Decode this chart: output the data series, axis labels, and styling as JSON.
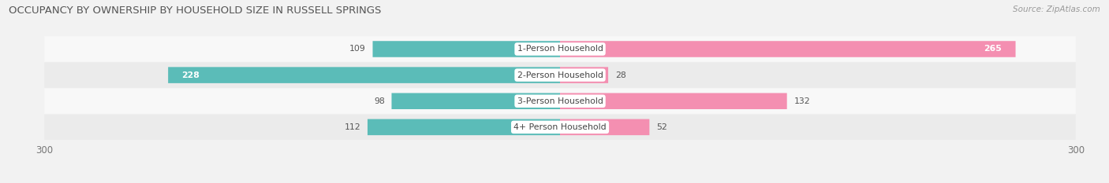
{
  "title": "OCCUPANCY BY OWNERSHIP BY HOUSEHOLD SIZE IN RUSSELL SPRINGS",
  "source": "Source: ZipAtlas.com",
  "categories": [
    "1-Person Household",
    "2-Person Household",
    "3-Person Household",
    "4+ Person Household"
  ],
  "owner_values": [
    109,
    228,
    98,
    112
  ],
  "renter_values": [
    265,
    28,
    132,
    52
  ],
  "owner_color": "#5bbcb8",
  "owner_color_dark": "#3a9e9a",
  "renter_color": "#f48fb1",
  "axis_max": 300,
  "axis_min": -300,
  "bg_color": "#f2f2f2",
  "row_bg_light": "#f8f8f8",
  "row_bg_dark": "#ebebeb",
  "title_fontsize": 9.5,
  "label_fontsize": 7.8,
  "tick_fontsize": 8.5,
  "source_fontsize": 7.5,
  "bar_height": 0.62
}
